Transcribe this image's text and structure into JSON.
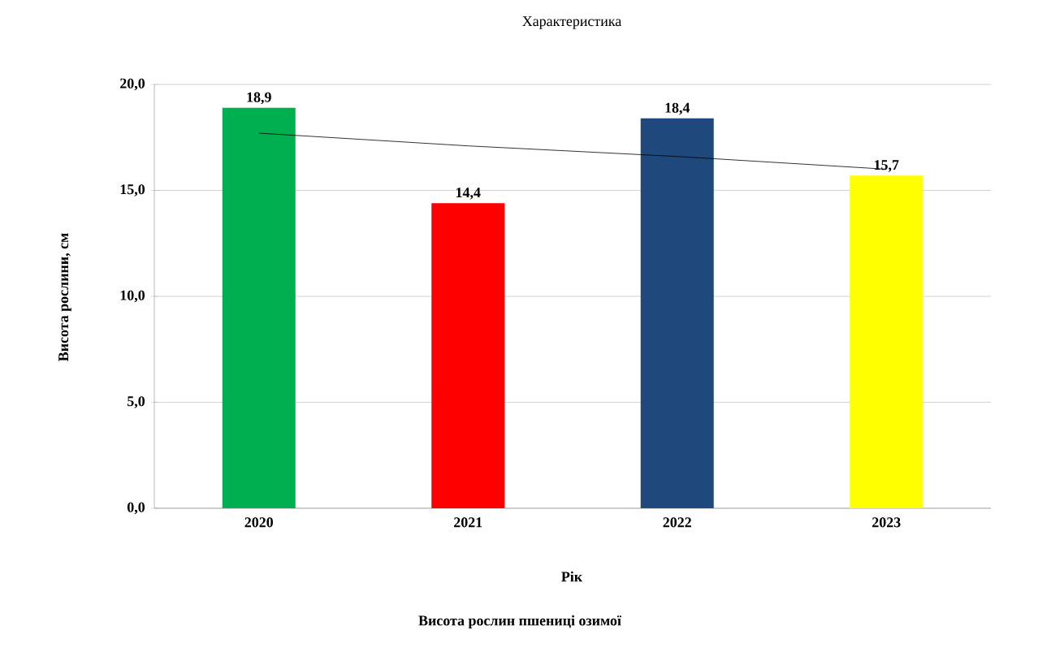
{
  "chart_data": {
    "type": "bar",
    "title": "Характеристика",
    "xlabel": "Рік",
    "ylabel": "Висота рослини, см",
    "annotations": [
      "Висота рослин пшениці озимої"
    ],
    "categories": [
      "2020",
      "2021",
      "2022",
      "2023"
    ],
    "series": [
      {
        "values": [
          18.9,
          14.4,
          18.4,
          15.7
        ],
        "colors": [
          "#00b050",
          "#ff0000",
          "#1f497d",
          "#ffff00"
        ],
        "value_labels": [
          "18,9",
          "14,4",
          "18,4",
          "15,7"
        ]
      },
      {
        "type": "line",
        "values": [
          17.7,
          17.1,
          16.6,
          16.0
        ],
        "color": "#000000",
        "line_style": "solid"
      }
    ],
    "ylim": [
      0,
      20
    ],
    "yticks": [
      {
        "value": 0,
        "label": "0,0"
      },
      {
        "value": 5,
        "label": "5,0"
      },
      {
        "value": 10,
        "label": "10,0"
      },
      {
        "value": 15,
        "label": "15,0"
      },
      {
        "value": 20,
        "label": "20,0"
      }
    ],
    "grid": "y"
  }
}
